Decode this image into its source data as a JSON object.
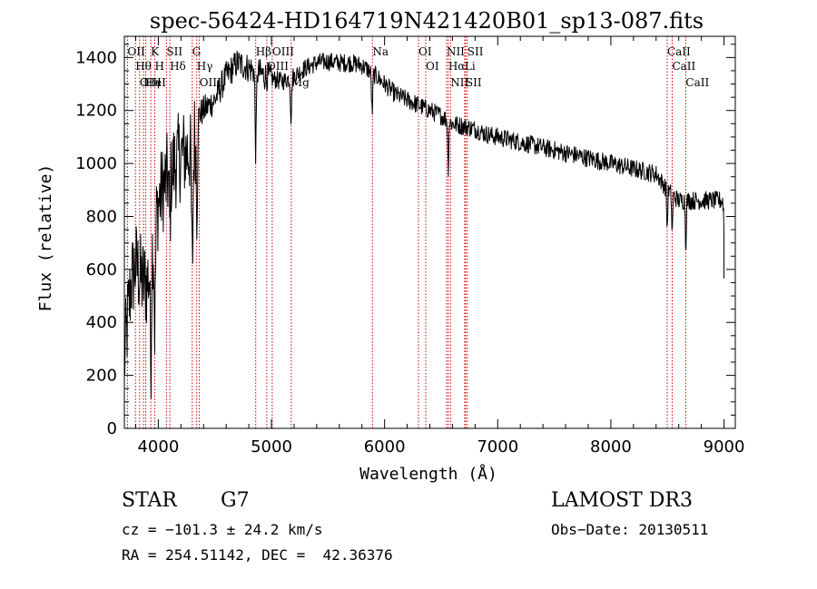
{
  "chart_data": {
    "type": "line",
    "title": "spec-56424-HD164719N421420B01_sp13-087.fits",
    "xlabel": "Wavelength (Å)",
    "ylabel": "Flux (relative)",
    "xlim": [
      3700,
      9100
    ],
    "ylim": [
      0,
      1480
    ],
    "x_ticks": [
      4000,
      5000,
      6000,
      7000,
      8000,
      9000
    ],
    "y_ticks": [
      0,
      200,
      400,
      600,
      800,
      1000,
      1200,
      1400
    ],
    "x_tick_labels": [
      "4000",
      "5000",
      "6000",
      "7000",
      "8000",
      "9000"
    ],
    "y_tick_labels": [
      "0",
      "200",
      "400",
      "600",
      "800",
      "1000",
      "1200",
      "1400"
    ],
    "series": [
      {
        "name": "flux",
        "continuum": {
          "x": [
            3700,
            3730,
            3760,
            3800,
            3850,
            3900,
            3950,
            4000,
            4050,
            4100,
            4150,
            4200,
            4250,
            4300,
            4350,
            4400,
            4500,
            4600,
            4700,
            4800,
            4900,
            5000,
            5100,
            5200,
            5300,
            5400,
            5500,
            5600,
            5700,
            5800,
            5900,
            6000,
            6100,
            6200,
            6300,
            6400,
            6500,
            6600,
            6700,
            6800,
            6900,
            7000,
            7200,
            7400,
            7600,
            7800,
            8000,
            8200,
            8400,
            8500,
            8600,
            8700,
            8800,
            8900,
            9000
          ],
          "y": [
            250,
            420,
            550,
            620,
            560,
            540,
            700,
            850,
            920,
            960,
            1000,
            1030,
            1040,
            1060,
            1180,
            1200,
            1240,
            1330,
            1380,
            1360,
            1340,
            1320,
            1310,
            1330,
            1360,
            1380,
            1385,
            1380,
            1380,
            1370,
            1340,
            1300,
            1260,
            1240,
            1220,
            1200,
            1180,
            1150,
            1140,
            1130,
            1110,
            1100,
            1080,
            1060,
            1040,
            1020,
            1000,
            980,
            960,
            900,
            860,
            860,
            860,
            860,
            860
          ]
        },
        "absorption_features": [
          {
            "x": 3934,
            "depth": 400,
            "width": 8
          },
          {
            "x": 3969,
            "depth": 380,
            "width": 8
          },
          {
            "x": 4102,
            "depth": 200,
            "width": 8
          },
          {
            "x": 4300,
            "depth": 450,
            "width": 10
          },
          {
            "x": 4340,
            "depth": 300,
            "width": 8
          },
          {
            "x": 4861,
            "depth": 300,
            "width": 8
          },
          {
            "x": 5173,
            "depth": 150,
            "width": 8
          },
          {
            "x": 5890,
            "depth": 150,
            "width": 8
          },
          {
            "x": 6563,
            "depth": 180,
            "width": 6
          },
          {
            "x": 8498,
            "depth": 150,
            "width": 6
          },
          {
            "x": 8542,
            "depth": 150,
            "width": 6
          },
          {
            "x": 8662,
            "depth": 170,
            "width": 6
          },
          {
            "x": 9010,
            "depth": 300,
            "width": 10
          }
        ],
        "noise_rms": 35
      }
    ],
    "spectral_lines": [
      {
        "x": 3727,
        "label": "OII"
      },
      {
        "x": 3798,
        "label": "Hθ"
      },
      {
        "x": 3835,
        "label": "OIII"
      },
      {
        "x": 3869,
        "label": "Hη"
      },
      {
        "x": 3889,
        "label": "HeI"
      },
      {
        "x": 3934,
        "label": "K"
      },
      {
        "x": 3969,
        "label": "H"
      },
      {
        "x": 4072,
        "label": "SII"
      },
      {
        "x": 4102,
        "label": "Hδ"
      },
      {
        "x": 4300,
        "label": "G"
      },
      {
        "x": 4340,
        "label": "Hγ"
      },
      {
        "x": 4363,
        "label": "OIII"
      },
      {
        "x": 4861,
        "label": "Hβ"
      },
      {
        "x": 4959,
        "label": "OIII"
      },
      {
        "x": 5007,
        "label": "OIII"
      },
      {
        "x": 5175,
        "label": "Mg"
      },
      {
        "x": 5893,
        "label": "Na"
      },
      {
        "x": 6300,
        "label": "OI"
      },
      {
        "x": 6364,
        "label": "OI"
      },
      {
        "x": 6548,
        "label": "NII"
      },
      {
        "x": 6563,
        "label": "Hα"
      },
      {
        "x": 6583,
        "label": "NII"
      },
      {
        "x": 6708,
        "label": "Li"
      },
      {
        "x": 6716,
        "label": "SII"
      },
      {
        "x": 6731,
        "label": "SII"
      },
      {
        "x": 8498,
        "label": "CaII"
      },
      {
        "x": 8542,
        "label": "CaII"
      },
      {
        "x": 8662,
        "label": "CaII"
      }
    ]
  },
  "info": {
    "class": "STAR",
    "subclass": "G7",
    "survey": "LAMOST DR3",
    "cz": "cz = −101.3 ± 24.2 km/s",
    "obs_date": "Obs−Date: 20130511",
    "coords": "RA = 254.51142, DEC =  42.36376"
  },
  "colors": {
    "line": "#000000",
    "marker": "#cc0000",
    "background": "#ffffff"
  }
}
